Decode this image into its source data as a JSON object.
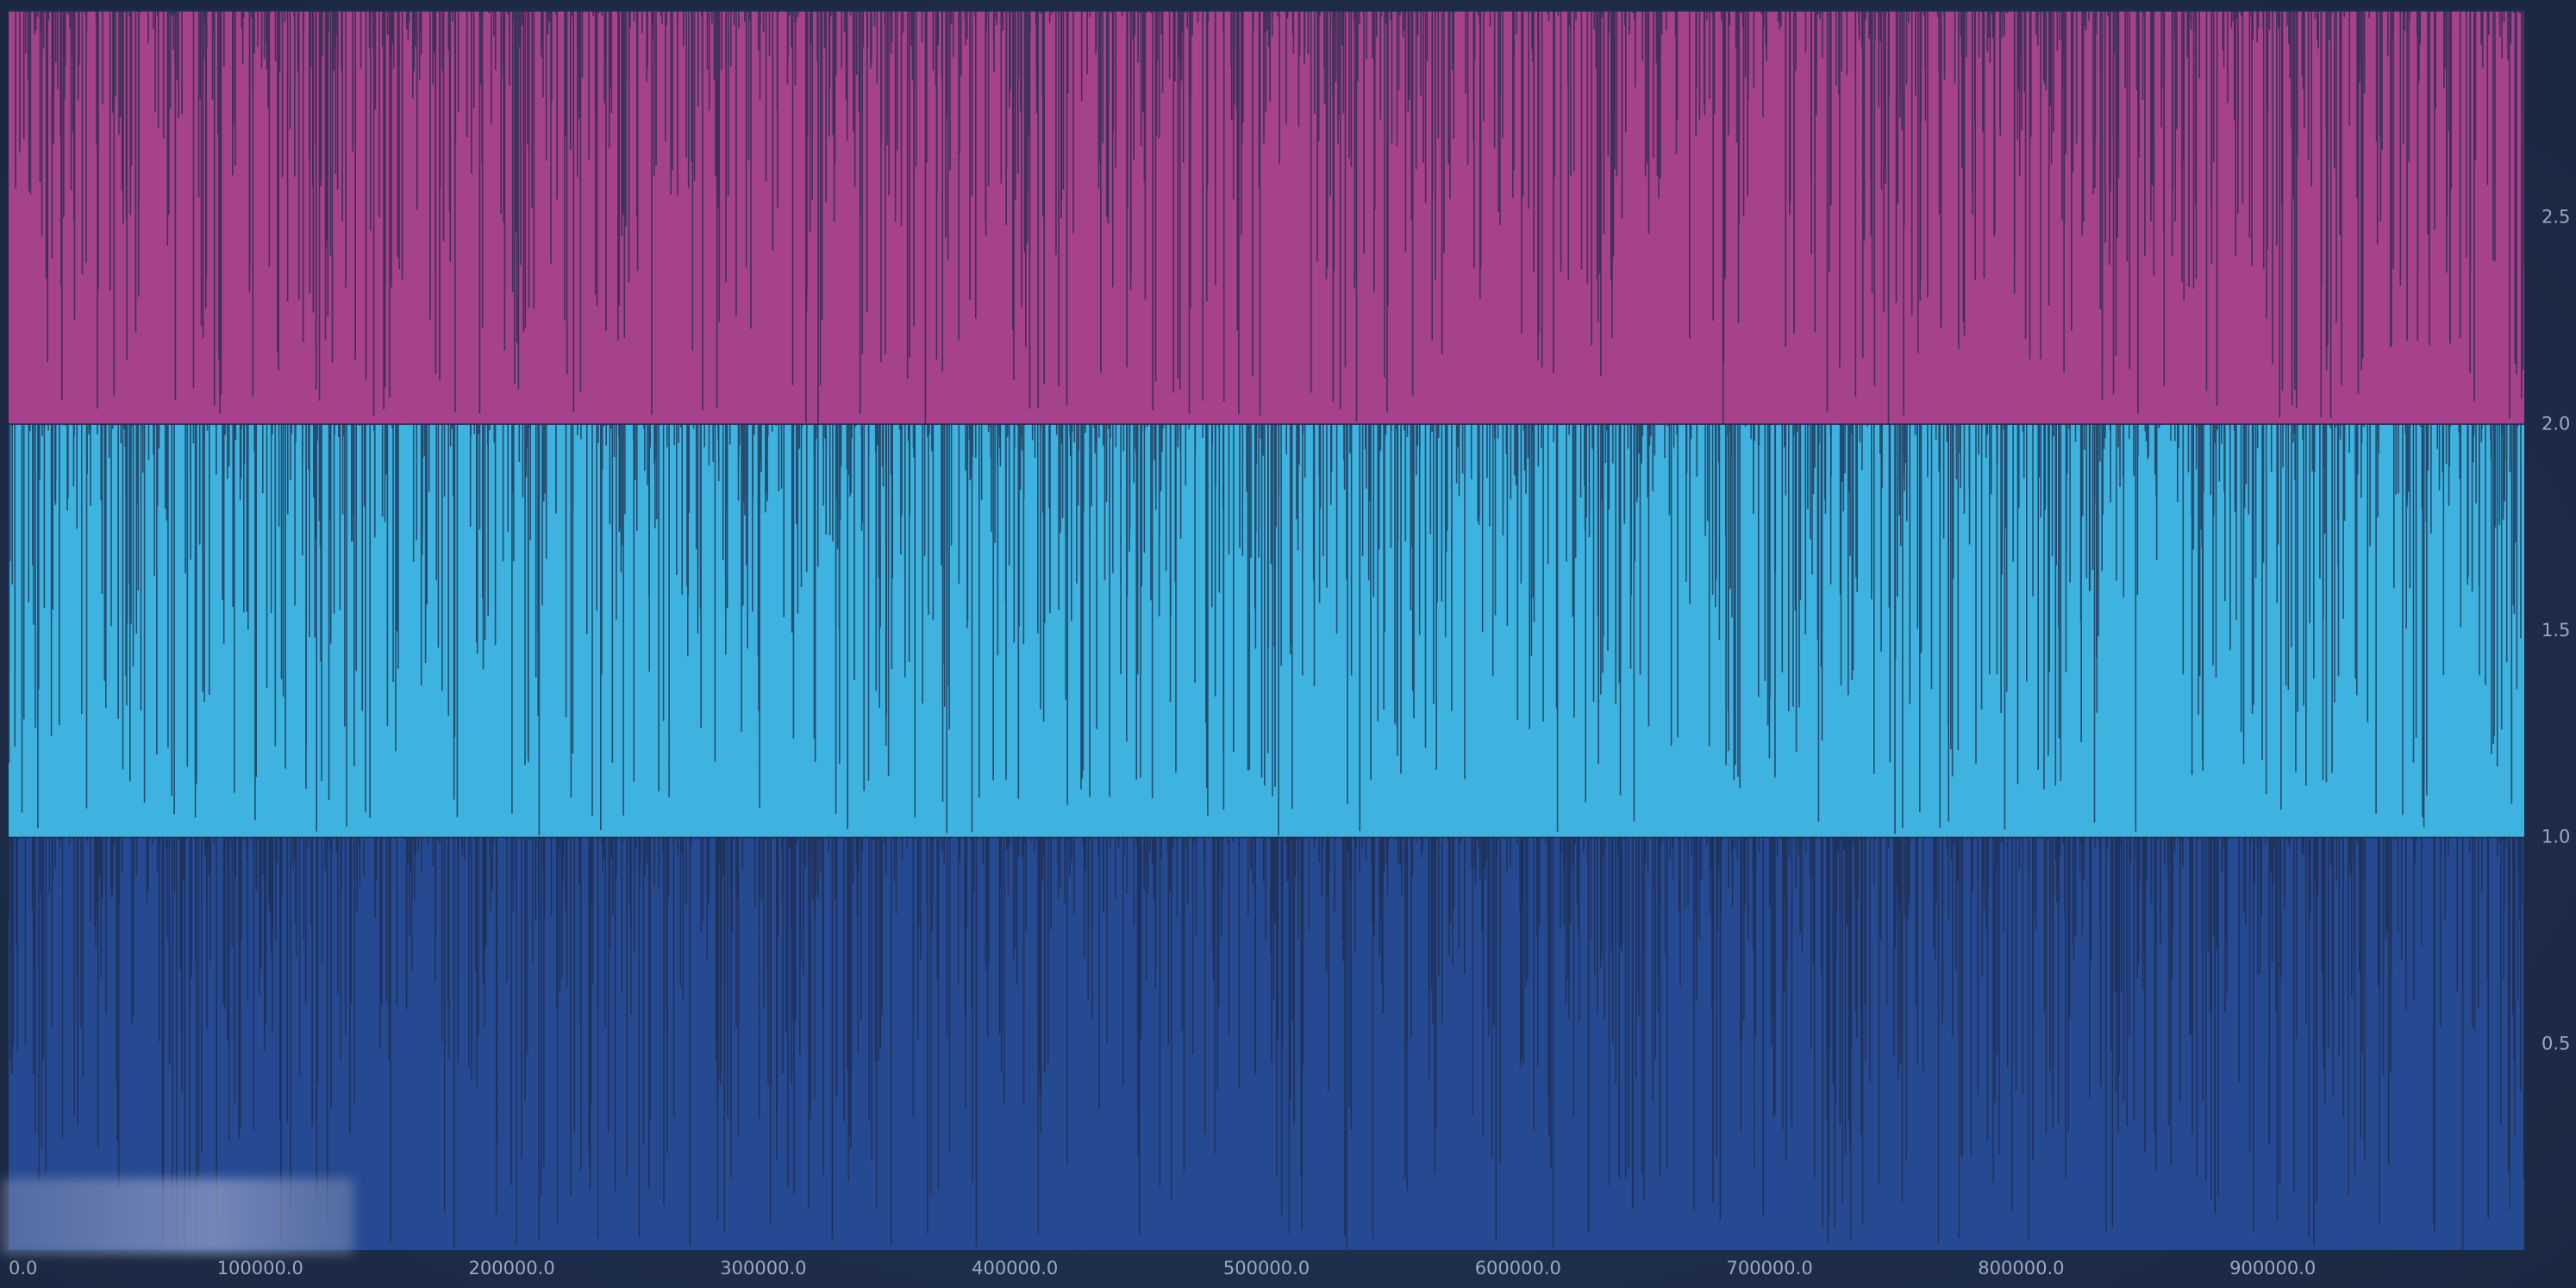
{
  "chart_data": {
    "type": "area",
    "title": "",
    "xlabel": "",
    "ylabel": "",
    "stacked": true,
    "xlim": [
      0,
      1000000
    ],
    "ylim": [
      0,
      3
    ],
    "x_ticks": [
      "0.0",
      "100000.0",
      "200000.0",
      "300000.0",
      "400000.0",
      "500000.0",
      "600000.0",
      "700000.0",
      "800000.0",
      "900000.0"
    ],
    "x_tick_values": [
      0,
      100000,
      200000,
      300000,
      400000,
      500000,
      600000,
      700000,
      800000,
      900000
    ],
    "y_ticks": [
      "0.5",
      "1.0",
      "1.5",
      "2.0",
      "2.5"
    ],
    "y_tick_values": [
      0.5,
      1.0,
      1.5,
      2.0,
      2.5
    ],
    "y_axis_side": "right",
    "grid": false,
    "legend": "bottom-left (obscured)",
    "series": [
      {
        "color": "#264a92",
        "band": [
          0,
          1
        ],
        "values_summary": "each stacked value 1.0, with frequent dips"
      },
      {
        "color": "#3fb3df",
        "band": [
          1,
          2
        ],
        "values_summary": "each stacked value 1.0, with frequent dips"
      },
      {
        "color": "#a6418c",
        "band": [
          2,
          3
        ],
        "values_summary": "each stacked value 1.0, with frequent dips"
      }
    ],
    "colors": {
      "background": "#1c2a44",
      "axis_text": "#9aa8c0",
      "dip_line": "#1e2b4a"
    }
  }
}
